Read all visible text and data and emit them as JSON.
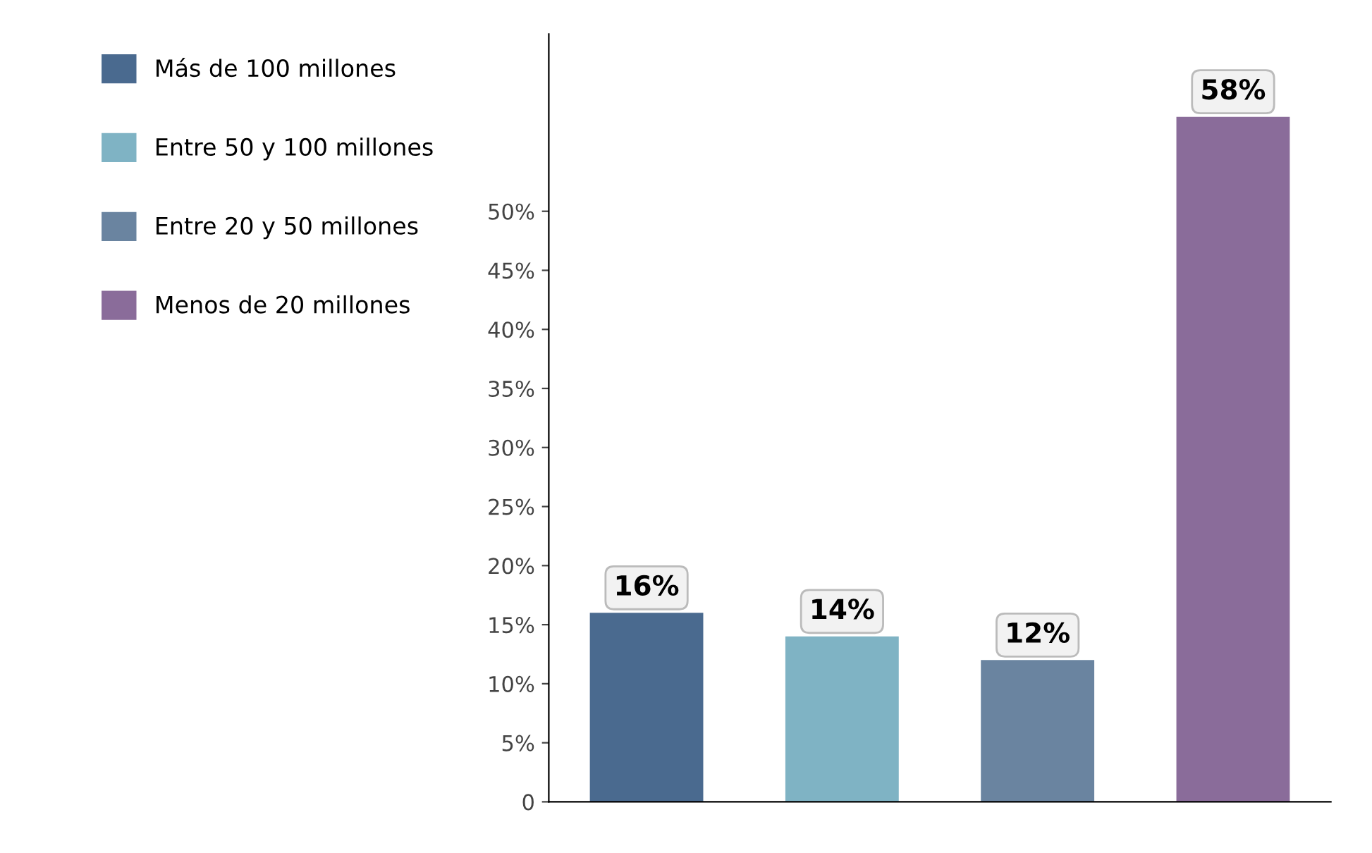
{
  "chart_data": {
    "type": "bar",
    "categories": [
      null,
      null,
      null,
      null
    ],
    "series": [
      {
        "name": "Más de 100 millones",
        "color": "#4a6a8f",
        "values": [
          16,
          null,
          null,
          null
        ],
        "value_labels": [
          "16%",
          null,
          null,
          null
        ]
      },
      {
        "name": "Entre 50 y 100 millones",
        "color": "#7fb3c4",
        "values": [
          null,
          14,
          null,
          null
        ],
        "value_labels": [
          null,
          "14%",
          null,
          null
        ]
      },
      {
        "name": "Entre 20 y 50 millones",
        "color": "#6a84a0",
        "values": [
          null,
          null,
          12,
          null
        ],
        "value_labels": [
          null,
          null,
          "12%",
          null
        ]
      },
      {
        "name": "Menos de 20 millones",
        "color": "#8a6c9a",
        "values": [
          null,
          null,
          null,
          58
        ],
        "value_labels": [
          null,
          null,
          null,
          "58%"
        ]
      }
    ],
    "ylim": [
      0,
      65
    ],
    "yticks": [
      0,
      {
        "value": 5,
        "label": "5%"
      },
      {
        "value": 10,
        "label": "10%"
      },
      {
        "value": 15,
        "label": "15%"
      },
      {
        "value": 20,
        "label": "20%"
      },
      {
        "value": 25,
        "label": "25%"
      },
      {
        "value": 30,
        "label": "30%"
      },
      {
        "value": 35,
        "label": "35%"
      },
      {
        "value": 40,
        "label": "40%"
      },
      {
        "value": 45,
        "label": "45%"
      },
      {
        "value": 50,
        "label": "50%"
      }
    ],
    "tick_labels": "y",
    "legend": "left",
    "grid": false
  }
}
